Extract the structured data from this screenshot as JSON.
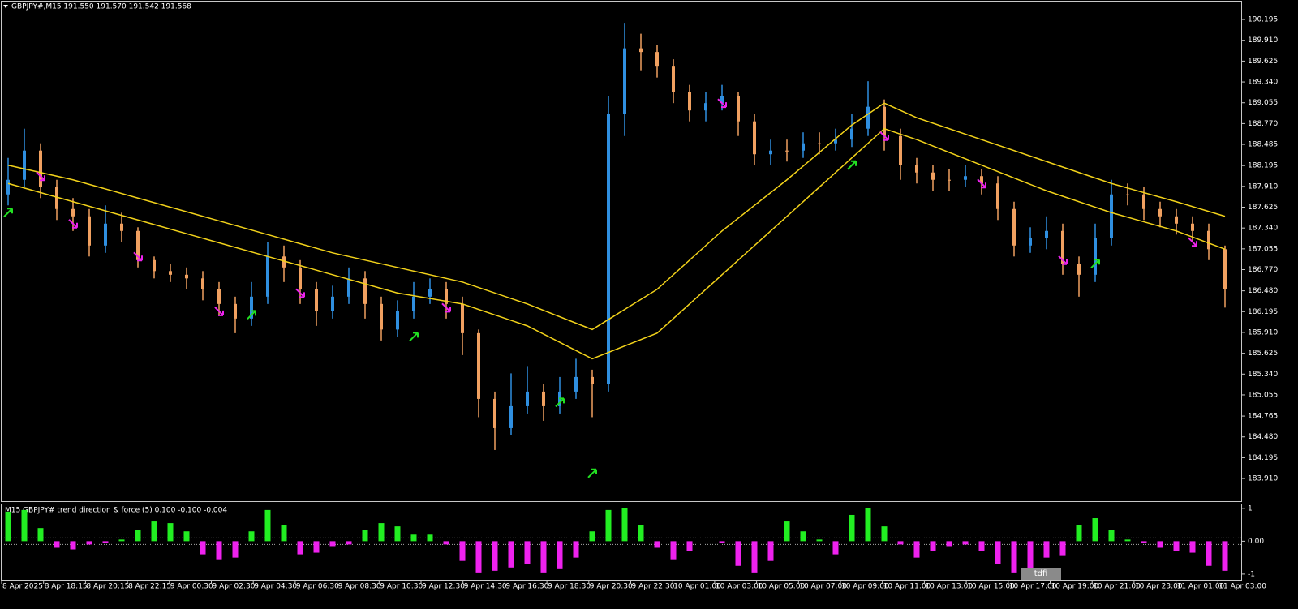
{
  "header": {
    "title": "GBPJPY#,M15  191.550 191.570 191.542 191.568"
  },
  "chart_data": [
    {
      "type": "ohlc",
      "up_color": "#2f8fe0",
      "down_color": "#f0a060",
      "open": [
        187.8,
        188.0,
        188.4,
        187.9,
        187.6,
        187.5,
        187.1,
        187.4,
        187.3,
        186.9,
        186.75,
        186.7,
        186.65,
        186.5,
        186.3,
        186.1,
        186.4,
        186.95,
        186.8,
        186.5,
        186.2,
        186.4,
        186.65,
        186.3,
        185.95,
        186.2,
        186.4,
        186.5,
        186.3,
        185.9,
        185.0,
        184.6,
        184.9,
        185.1,
        184.9,
        185.1,
        185.3,
        185.2,
        188.9,
        189.8,
        189.75,
        189.55,
        189.2,
        188.95,
        189.05,
        189.15,
        188.8,
        188.35,
        188.4,
        188.4,
        188.5,
        188.5,
        188.55,
        188.7,
        189.0,
        188.6,
        188.2,
        188.1,
        188.0,
        188.0,
        188.05,
        187.95,
        187.6,
        187.1,
        187.2,
        187.3,
        186.85,
        186.7,
        187.2,
        187.8,
        187.8,
        187.6,
        187.5,
        187.4,
        187.3,
        187.05
      ],
      "high": [
        188.3,
        188.7,
        188.5,
        188.0,
        187.75,
        187.6,
        187.65,
        187.55,
        187.35,
        186.95,
        186.85,
        186.8,
        186.75,
        186.6,
        186.4,
        186.6,
        187.15,
        187.1,
        186.9,
        186.6,
        186.55,
        186.8,
        186.75,
        186.4,
        186.35,
        186.6,
        186.65,
        186.6,
        186.4,
        185.95,
        185.1,
        185.35,
        185.45,
        185.2,
        185.3,
        185.55,
        185.4,
        189.15,
        190.15,
        190.0,
        189.85,
        189.65,
        189.3,
        189.2,
        189.3,
        189.2,
        188.9,
        188.55,
        188.55,
        188.65,
        188.65,
        188.7,
        188.9,
        189.35,
        189.1,
        188.7,
        188.3,
        188.2,
        188.15,
        188.2,
        188.15,
        188.05,
        187.7,
        187.35,
        187.5,
        187.4,
        186.95,
        187.4,
        188.0,
        187.95,
        187.9,
        187.7,
        187.6,
        187.5,
        187.4,
        187.1
      ],
      "low": [
        187.65,
        187.9,
        187.75,
        187.45,
        187.3,
        186.95,
        187.0,
        187.15,
        186.8,
        186.65,
        186.6,
        186.5,
        186.35,
        186.15,
        185.9,
        186.0,
        186.3,
        186.6,
        186.3,
        186.0,
        186.1,
        186.3,
        186.1,
        185.8,
        185.85,
        186.1,
        186.3,
        186.1,
        185.6,
        184.75,
        184.3,
        184.5,
        184.8,
        184.7,
        184.8,
        185.0,
        184.75,
        185.1,
        188.6,
        189.5,
        189.4,
        189.05,
        188.8,
        188.8,
        188.95,
        188.6,
        188.2,
        188.2,
        188.25,
        188.3,
        188.35,
        188.4,
        188.45,
        188.6,
        188.4,
        188.0,
        187.95,
        187.85,
        187.85,
        187.9,
        187.8,
        187.45,
        186.95,
        187.0,
        187.05,
        186.7,
        186.4,
        186.6,
        187.1,
        187.65,
        187.45,
        187.35,
        187.25,
        187.15,
        186.9,
        186.25
      ],
      "close": [
        188.0,
        188.4,
        187.9,
        187.6,
        187.5,
        187.1,
        187.4,
        187.3,
        186.9,
        186.75,
        186.7,
        186.65,
        186.5,
        186.3,
        186.1,
        186.4,
        186.95,
        186.8,
        186.5,
        186.2,
        186.4,
        186.65,
        186.3,
        185.95,
        186.2,
        186.4,
        186.5,
        186.3,
        185.9,
        185.0,
        184.6,
        184.9,
        185.1,
        184.9,
        185.1,
        185.3,
        185.2,
        188.9,
        189.8,
        189.75,
        189.55,
        189.2,
        188.95,
        189.05,
        189.15,
        188.8,
        188.35,
        188.4,
        188.4,
        188.5,
        188.5,
        188.55,
        188.7,
        189.0,
        188.6,
        188.2,
        188.1,
        188.0,
        188.0,
        188.05,
        187.95,
        187.6,
        187.1,
        187.2,
        187.3,
        186.85,
        186.7,
        187.2,
        187.8,
        187.8,
        187.6,
        187.5,
        187.4,
        187.3,
        187.05,
        186.5
      ],
      "ylim": [
        183.6,
        190.44
      ],
      "yticks": [
        190.195,
        {
          "value": 189.91,
          "label": "189.910"
        },
        189.625,
        {
          "value": 189.34,
          "label": "189.340"
        },
        189.055,
        {
          "value": 188.77,
          "label": "188.770"
        },
        188.485,
        188.195,
        {
          "value": 187.91,
          "label": "187.910"
        },
        187.625,
        {
          "value": 187.34,
          "label": "187.340"
        },
        187.055,
        {
          "value": 186.77,
          "label": "186.770"
        },
        {
          "value": 186.48,
          "label": "186.480"
        },
        186.195,
        {
          "value": 185.91,
          "label": "185.910"
        },
        185.625,
        {
          "value": 185.34,
          "label": "185.340"
        },
        185.055,
        184.765,
        {
          "value": 184.48,
          "label": "184.480"
        },
        184.195,
        {
          "value": 183.91,
          "label": "183.910"
        }
      ],
      "lines": [
        {
          "color": "#f2d21a",
          "x": [
            0,
            4,
            8,
            12,
            16,
            20,
            24,
            28,
            32,
            36,
            40,
            44,
            48,
            52,
            54,
            56,
            60,
            64,
            68,
            72,
            75
          ],
          "values": [
            188.2,
            188.0,
            187.75,
            187.5,
            187.25,
            187.0,
            186.8,
            186.6,
            186.3,
            185.95,
            186.5,
            187.3,
            188.0,
            188.75,
            189.05,
            188.85,
            188.55,
            188.25,
            187.95,
            187.7,
            187.5
          ]
        },
        {
          "color": "#f2d21a",
          "x": [
            0,
            4,
            8,
            12,
            16,
            20,
            24,
            28,
            32,
            36,
            40,
            44,
            48,
            52,
            54,
            56,
            60,
            64,
            68,
            72,
            75
          ],
          "values": [
            187.95,
            187.7,
            187.45,
            187.2,
            186.95,
            186.7,
            186.45,
            186.3,
            186.0,
            185.55,
            185.9,
            186.7,
            187.5,
            188.3,
            188.7,
            188.55,
            188.2,
            187.85,
            187.55,
            187.3,
            187.05
          ]
        }
      ],
      "signals": [
        {
          "direction": "up",
          "color": "#22e022",
          "x": [
            0,
            15,
            25,
            34,
            36,
            52,
            67
          ],
          "values": [
            187.55,
            186.15,
            185.85,
            184.95,
            183.98,
            188.2,
            186.85
          ]
        },
        {
          "direction": "down",
          "color": "#ee22ee",
          "x": [
            2,
            4,
            8,
            13,
            18,
            27,
            44,
            54,
            60,
            65,
            73
          ],
          "values": [
            188.05,
            187.4,
            186.95,
            186.2,
            186.45,
            186.25,
            189.05,
            188.6,
            187.95,
            186.9,
            187.15
          ]
        }
      ]
    },
    {
      "type": "histogram",
      "title": "M15 GBPJPY# trend direction & force (5) 0.100 -0.100 -0.004",
      "pos_color": "#22ee22",
      "neg_color": "#ee22ee",
      "values": [
        0.9,
        0.95,
        0.4,
        -0.2,
        -0.25,
        -0.1,
        -0.05,
        0.05,
        0.35,
        0.6,
        0.55,
        0.3,
        -0.4,
        -0.55,
        -0.5,
        0.3,
        0.95,
        0.5,
        -0.4,
        -0.35,
        -0.15,
        -0.1,
        0.35,
        0.55,
        0.45,
        0.2,
        0.2,
        -0.1,
        -0.6,
        -0.95,
        -0.9,
        -0.8,
        -0.7,
        -0.95,
        -0.85,
        -0.5,
        0.3,
        0.95,
        1.0,
        0.5,
        -0.2,
        -0.55,
        -0.3,
        0.0,
        -0.05,
        -0.75,
        -0.95,
        -0.6,
        0.6,
        0.3,
        0.05,
        -0.4,
        0.8,
        1.0,
        0.45,
        -0.1,
        -0.5,
        -0.3,
        -0.15,
        -0.1,
        -0.3,
        -0.7,
        -0.95,
        -0.9,
        -0.5,
        -0.45,
        0.5,
        0.7,
        0.35,
        0.05,
        -0.05,
        -0.2,
        -0.3,
        -0.35,
        -0.75,
        -0.9
      ],
      "ylim": [
        -1.2,
        1.12
      ],
      "yticks": [
        1,
        {
          "value": 0,
          "label": "0.00"
        },
        -1
      ],
      "levels": [
        0.1,
        -0.1
      ]
    }
  ],
  "time_axis": {
    "labels": [
      "8 Apr 2025",
      "8 Apr 18:15",
      "8 Apr 20:15",
      "8 Apr 22:15",
      "9 Apr 00:30",
      "9 Apr 02:30",
      "9 Apr 04:30",
      "9 Apr 06:30",
      "9 Apr 08:30",
      "9 Apr 10:30",
      "9 Apr 12:30",
      "9 Apr 14:30",
      "9 Apr 16:30",
      "9 Apr 18:30",
      "9 Apr 20:30",
      "9 Apr 22:30",
      "10 Apr 01:00",
      "10 Apr 03:00",
      "10 Apr 05:00",
      "10 Apr 07:00",
      "10 Apr 09:00",
      "10 Apr 11:00",
      "10 Apr 13:00",
      "10 Apr 15:00",
      "10 Apr 17:00",
      "10 Apr 19:00",
      "10 Apr 21:00",
      "10 Apr 23:00",
      "11 Apr 01:00",
      "11 Apr 03:00"
    ]
  },
  "button": {
    "label": "tdfi"
  }
}
